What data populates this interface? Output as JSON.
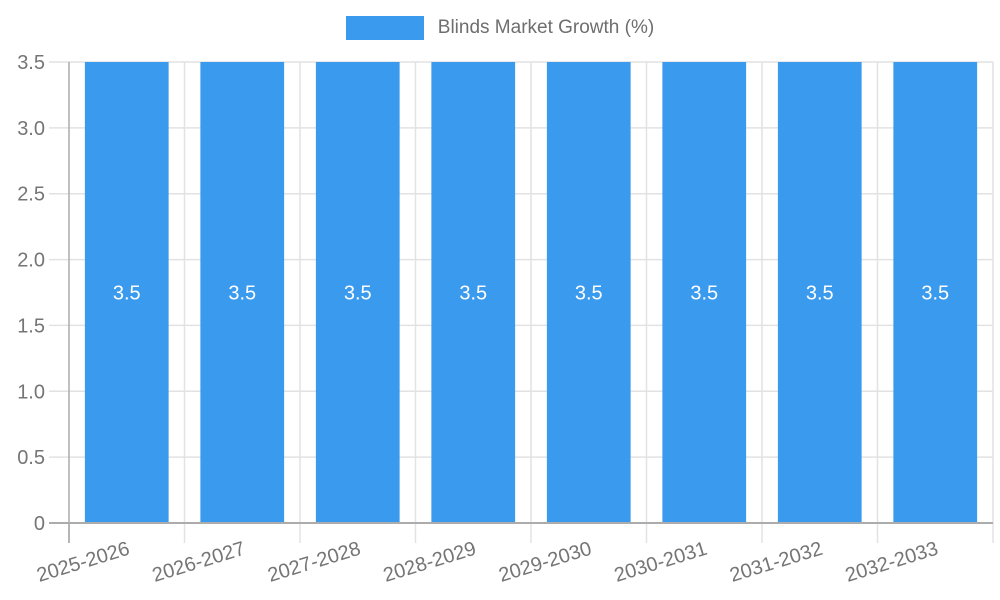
{
  "chart_data": {
    "type": "bar",
    "title": "Blinds Market Growth (%)",
    "legend": {
      "position": "top",
      "entries": [
        "Blinds Market Growth (%)"
      ]
    },
    "categories": [
      "2025-2026",
      "2026-2027",
      "2027-2028",
      "2028-2029",
      "2029-2030",
      "2030-2031",
      "2031-2032",
      "2032-2033"
    ],
    "values": [
      3.5,
      3.5,
      3.5,
      3.5,
      3.5,
      3.5,
      3.5,
      3.5
    ],
    "bar_labels": [
      "3.5",
      "3.5",
      "3.5",
      "3.5",
      "3.5",
      "3.5",
      "3.5",
      "3.5"
    ],
    "xlabel": "",
    "ylabel": "",
    "ylim": [
      0,
      3.5
    ],
    "yticks": [
      0,
      0.5,
      1,
      1.5,
      2,
      2.5,
      3,
      3.5
    ],
    "ytick_labels": [
      "0",
      "0.5",
      "1.0",
      "1.5",
      "2.0",
      "2.5",
      "3.0",
      "3.5"
    ],
    "grid": true,
    "xtick_rotation_deg": -17,
    "colors": {
      "bar": "#399AEE",
      "grid": "#E2E2E2",
      "axis": "#ACACAC",
      "tick_text": "#757575",
      "legend_text": "#6e6e6e",
      "bar_label_text": "#FFFFFF",
      "background": "#FFFFFF"
    }
  }
}
